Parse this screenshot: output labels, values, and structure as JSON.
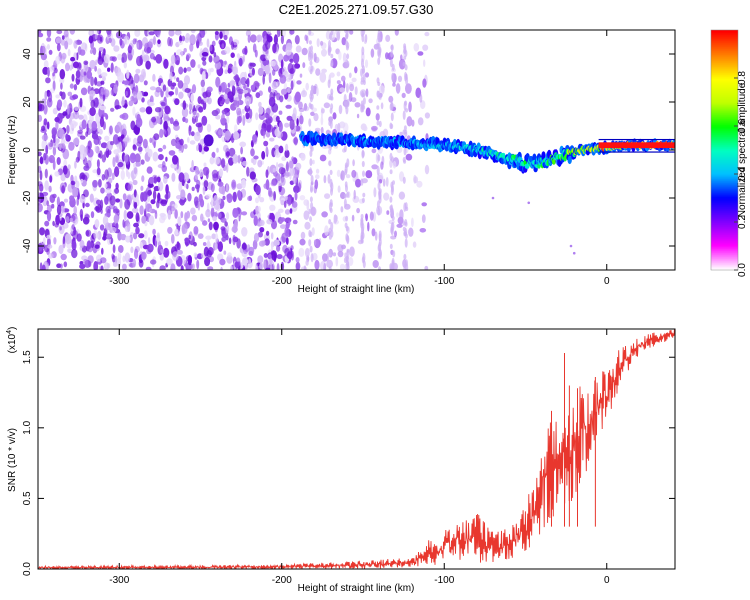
{
  "title": "C2E1.2025.271.09.57.G30",
  "chart_data": [
    {
      "type": "heatmap",
      "title": "C2E1.2025.271.09.57.G30",
      "xlabel": "Height of straight line (km)",
      "ylabel": "Frequency (Hz)",
      "xlim": [
        -350,
        42
      ],
      "ylim": [
        -50,
        50
      ],
      "xticks": [
        -300,
        -200,
        -100,
        0
      ],
      "xtick_labels": [
        "-300",
        "-200",
        "-100",
        "0"
      ],
      "yticks": [
        -40,
        -20,
        0,
        20,
        40
      ],
      "ytick_labels": [
        "-40",
        "-20",
        "0",
        "20",
        "40"
      ],
      "colorbar": {
        "label": "Normalized spectral amplitude",
        "range": [
          0,
          1
        ],
        "ticks": [
          0.0,
          0.2,
          0.4,
          0.6,
          0.8
        ],
        "tick_labels": [
          "0.0",
          "0.2",
          "0.4",
          "0.6",
          "0.8"
        ],
        "colormap": [
          "#ffffff",
          "#ff00ff",
          "#8000ff",
          "#0000ff",
          "#00c0ff",
          "#00ffc0",
          "#00ff00",
          "#c0ff00",
          "#ffff00",
          "#ff8000",
          "#ff0000"
        ]
      },
      "noise_region_x": [
        -350,
        -120
      ],
      "signal_center_hz": [
        {
          "x": -187,
          "y": 5
        },
        {
          "x": -150,
          "y": 4
        },
        {
          "x": -120,
          "y": 3
        },
        {
          "x": -100,
          "y": 2
        },
        {
          "x": -80,
          "y": 0
        },
        {
          "x": -60,
          "y": -4
        },
        {
          "x": -45,
          "y": -6
        },
        {
          "x": -30,
          "y": -3
        },
        {
          "x": -15,
          "y": 0
        },
        {
          "x": 0,
          "y": 1
        },
        {
          "x": 15,
          "y": 2
        },
        {
          "x": 42,
          "y": 2
        }
      ],
      "signal_peak_amplitude": [
        {
          "x": -187,
          "a": 0.35
        },
        {
          "x": -150,
          "a": 0.4
        },
        {
          "x": -120,
          "a": 0.4
        },
        {
          "x": -100,
          "a": 0.45
        },
        {
          "x": -80,
          "a": 0.5
        },
        {
          "x": -60,
          "a": 0.55
        },
        {
          "x": -40,
          "a": 0.6
        },
        {
          "x": -20,
          "a": 0.7
        },
        {
          "x": 0,
          "a": 0.95
        },
        {
          "x": 42,
          "a": 1.0
        }
      ]
    },
    {
      "type": "line",
      "xlabel": "Height of straight line (km)",
      "ylabel": "SNR (10 * v/v)",
      "scale_label": "(x10",
      "scale_exponent": "4",
      "scale_suffix": ")",
      "xlim": [
        -350,
        42
      ],
      "ylim": [
        0,
        1.7
      ],
      "xticks": [
        -300,
        -200,
        -100,
        0
      ],
      "xtick_labels": [
        "-300",
        "-200",
        "-100",
        "0"
      ],
      "yticks": [
        0.0,
        0.5,
        1.0,
        1.5
      ],
      "ytick_labels": [
        "0.0",
        "0.5",
        "1.0",
        "1.5"
      ],
      "series": [
        {
          "name": "SNR",
          "color": "#e8372e",
          "envelope_x": [
            -350,
            -200,
            -150,
            -120,
            -110,
            -100,
            -90,
            -80,
            -70,
            -60,
            -50,
            -40,
            -30,
            -20,
            -10,
            0,
            10,
            20,
            30,
            42
          ],
          "envelope_low": [
            0.0,
            0.0,
            0.0,
            0.01,
            0.02,
            0.04,
            0.05,
            0.04,
            0.03,
            0.05,
            0.12,
            0.25,
            0.35,
            0.5,
            0.75,
            1.05,
            1.35,
            1.5,
            1.58,
            1.64
          ],
          "envelope_high": [
            0.02,
            0.03,
            0.06,
            0.08,
            0.2,
            0.28,
            0.35,
            0.4,
            0.3,
            0.28,
            0.45,
            0.9,
            1.2,
            1.3,
            1.35,
            1.45,
            1.6,
            1.65,
            1.68,
            1.7
          ]
        }
      ],
      "spikes": [
        {
          "x": -26,
          "y": 1.53
        },
        {
          "x": -34,
          "y": 1.12
        },
        {
          "x": -23,
          "y": 1.3
        },
        {
          "x": -18,
          "y": 1.28
        },
        {
          "x": -7,
          "y": 1.36
        }
      ]
    }
  ]
}
